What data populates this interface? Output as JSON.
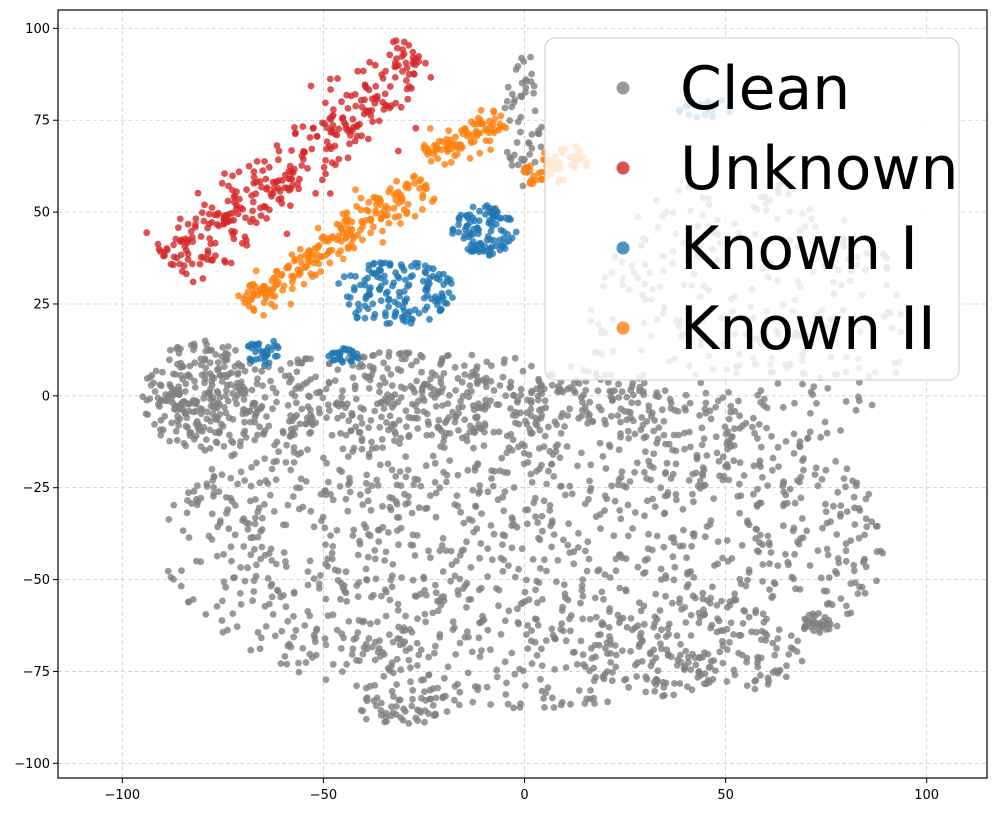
{
  "chart_data": {
    "type": "scatter",
    "title": "",
    "xlabel": "",
    "ylabel": "",
    "xlim": [
      -116,
      115
    ],
    "ylim": [
      -104,
      105
    ],
    "x_ticks": [
      -100,
      -50,
      0,
      50,
      100
    ],
    "y_ticks": [
      -100,
      -75,
      -50,
      -25,
      0,
      25,
      50,
      75,
      100
    ],
    "x_tick_labels": [
      "−100",
      "−50",
      "0",
      "50",
      "100"
    ],
    "y_tick_labels": [
      "−100",
      "−75",
      "−50",
      "−25",
      "0",
      "25",
      "50",
      "75",
      "100"
    ],
    "grid": true,
    "legend_position": "top-right",
    "legend": [
      {
        "label": "Clean",
        "color": "#7f7f7f"
      },
      {
        "label": "Unknown",
        "color": "#d62728"
      },
      {
        "label": "Known I",
        "color": "#1f77b4"
      },
      {
        "label": "Known II",
        "color": "#ff7f0e"
      }
    ],
    "series": [
      {
        "name": "Clean",
        "color": "#7f7f7f",
        "count": 2600
      },
      {
        "name": "Unknown",
        "color": "#d62728",
        "count": 330
      },
      {
        "name": "Known I",
        "color": "#1f77b4",
        "count": 330
      },
      {
        "name": "Known II",
        "color": "#ff7f0e",
        "count": 380
      }
    ],
    "clusters": {
      "Clean": [
        {
          "cx": 0,
          "cy": -40,
          "rx": 90,
          "ry": 45,
          "w": 0.55
        },
        {
          "cx": -30,
          "cy": 0,
          "rx": 60,
          "ry": 12,
          "w": 0.15
        },
        {
          "cx": 55,
          "cy": 20,
          "rx": 40,
          "ry": 40,
          "w": 0.12
        },
        {
          "cx": 40,
          "cy": -70,
          "rx": 30,
          "ry": 12,
          "w": 0.05
        },
        {
          "cx": -30,
          "cy": -85,
          "rx": 12,
          "ry": 5,
          "w": 0.02
        },
        {
          "cx": 0,
          "cy": 75,
          "rx": 5,
          "ry": 18,
          "w": 0.02
        },
        {
          "cx": 73,
          "cy": -62,
          "rx": 4,
          "ry": 3,
          "w": 0.01
        },
        {
          "cx": -80,
          "cy": 0,
          "rx": 15,
          "ry": 15,
          "w": 0.08
        }
      ],
      "Unknown": [
        {
          "x0": -88,
          "y0": 35,
          "x1": -25,
          "y1": 92,
          "spread": 7
        }
      ],
      "Known I": [
        {
          "cx": -10,
          "cy": 45,
          "rx": 8,
          "ry": 7,
          "w": 0.3
        },
        {
          "cx": -32,
          "cy": 28,
          "rx": 15,
          "ry": 9,
          "w": 0.45
        },
        {
          "cx": -65,
          "cy": 12,
          "rx": 4,
          "ry": 4,
          "w": 0.1
        },
        {
          "cx": -45,
          "cy": 11,
          "rx": 4,
          "ry": 2,
          "w": 0.08
        },
        {
          "cx": 45,
          "cy": 78,
          "rx": 7,
          "ry": 3,
          "w": 0.07
        }
      ],
      "Known II": [
        {
          "x0": -70,
          "y0": 25,
          "x1": -25,
          "y1": 58,
          "spread": 5
        },
        {
          "x0": -25,
          "y0": 65,
          "x1": -5,
          "y1": 75,
          "spread": 4
        },
        {
          "x0": 0,
          "y0": 60,
          "x1": 15,
          "y1": 65,
          "spread": 3
        }
      ]
    }
  }
}
